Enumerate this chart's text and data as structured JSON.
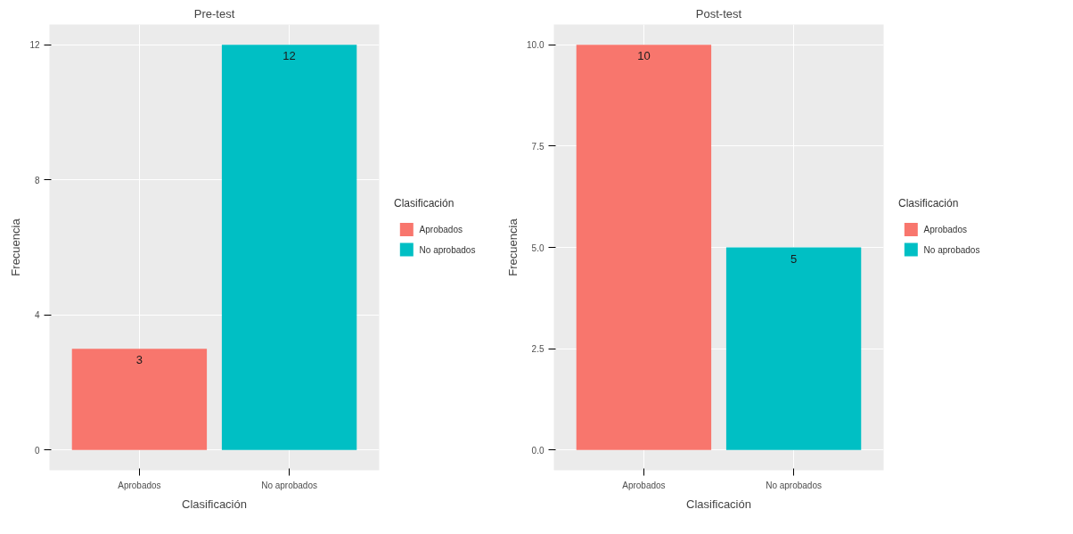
{
  "chart_data": [
    {
      "type": "bar",
      "title": "Pre-test",
      "xlabel": "Clasificación",
      "ylabel": "Frecuencia",
      "legend_title": "Clasificación",
      "categories": [
        "Aprobados",
        "No aprobados"
      ],
      "series": [
        {
          "name": "Aprobados",
          "color": "#f8766d",
          "values": [
            3,
            null
          ]
        },
        {
          "name": "No aprobados",
          "color": "#00bfc4",
          "values": [
            null,
            12
          ]
        }
      ],
      "ylim": [
        -0.6,
        12.6
      ],
      "yticks": [
        0,
        4,
        8,
        12
      ],
      "grid": true,
      "legend": "right",
      "data_labels": true
    },
    {
      "type": "bar",
      "title": "Post-test",
      "xlabel": "Clasificación",
      "ylabel": "Frecuencia",
      "legend_title": "Clasificación",
      "categories": [
        "Aprobados",
        "No aprobados"
      ],
      "series": [
        {
          "name": "Aprobados",
          "color": "#f8766d",
          "values": [
            10,
            null
          ]
        },
        {
          "name": "No aprobados",
          "color": "#00bfc4",
          "values": [
            null,
            5
          ]
        }
      ],
      "ylim": [
        -0.5,
        10.5
      ],
      "yticks": [
        {
          "value": 0,
          "label": "0.0"
        },
        {
          "value": 2.5,
          "label": "2.5"
        },
        {
          "value": 5,
          "label": "5.0"
        },
        {
          "value": 7.5,
          "label": "7.5"
        },
        {
          "value": 10,
          "label": "10.0"
        }
      ],
      "grid": true,
      "legend": "right",
      "data_labels": true
    }
  ]
}
